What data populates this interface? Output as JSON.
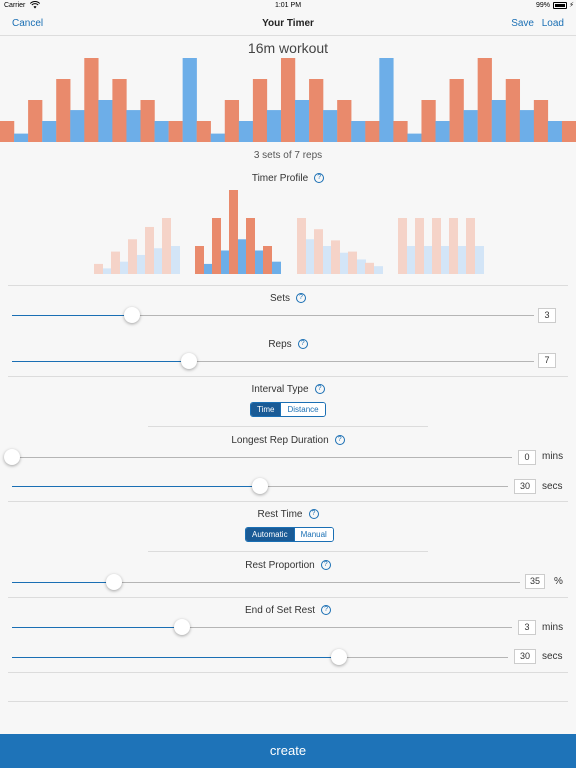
{
  "status": {
    "carrier": "Carrier",
    "time": "1:01 PM",
    "battery": "99%",
    "battery_level": 0.99
  },
  "nav": {
    "cancel": "Cancel",
    "title": "Your Timer",
    "save": "Save",
    "load": "Load"
  },
  "workout": {
    "title": "16m workout",
    "summary": "3 sets of 7 reps",
    "colors": {
      "work": "#e98a6c",
      "rest": "#6daee8"
    },
    "bars": [
      {
        "type": "work",
        "v": 0.25
      },
      {
        "type": "rest",
        "v": 0.1
      },
      {
        "type": "work",
        "v": 0.5
      },
      {
        "type": "rest",
        "v": 0.25
      },
      {
        "type": "work",
        "v": 0.75
      },
      {
        "type": "rest",
        "v": 0.38
      },
      {
        "type": "work",
        "v": 1.0
      },
      {
        "type": "rest",
        "v": 0.5
      },
      {
        "type": "work",
        "v": 0.75
      },
      {
        "type": "rest",
        "v": 0.38
      },
      {
        "type": "work",
        "v": 0.5
      },
      {
        "type": "rest",
        "v": 0.25
      },
      {
        "type": "work",
        "v": 0.25
      },
      {
        "type": "rest",
        "v": 1.0
      },
      {
        "type": "work",
        "v": 0.25
      },
      {
        "type": "rest",
        "v": 0.1
      },
      {
        "type": "work",
        "v": 0.5
      },
      {
        "type": "rest",
        "v": 0.25
      },
      {
        "type": "work",
        "v": 0.75
      },
      {
        "type": "rest",
        "v": 0.38
      },
      {
        "type": "work",
        "v": 1.0
      },
      {
        "type": "rest",
        "v": 0.5
      },
      {
        "type": "work",
        "v": 0.75
      },
      {
        "type": "rest",
        "v": 0.38
      },
      {
        "type": "work",
        "v": 0.5
      },
      {
        "type": "rest",
        "v": 0.25
      },
      {
        "type": "work",
        "v": 0.25
      },
      {
        "type": "rest",
        "v": 1.0
      },
      {
        "type": "work",
        "v": 0.25
      },
      {
        "type": "rest",
        "v": 0.1
      },
      {
        "type": "work",
        "v": 0.5
      },
      {
        "type": "rest",
        "v": 0.25
      },
      {
        "type": "work",
        "v": 0.75
      },
      {
        "type": "rest",
        "v": 0.38
      },
      {
        "type": "work",
        "v": 1.0
      },
      {
        "type": "rest",
        "v": 0.5
      },
      {
        "type": "work",
        "v": 0.75
      },
      {
        "type": "rest",
        "v": 0.38
      },
      {
        "type": "work",
        "v": 0.5
      },
      {
        "type": "rest",
        "v": 0.25
      },
      {
        "type": "work",
        "v": 0.25
      }
    ]
  },
  "timer_profile": {
    "label": "Timer Profile",
    "selected": 1,
    "options": [
      {
        "name": "ascending",
        "work": [
          0.18,
          0.4,
          0.62,
          0.84,
          1.0
        ],
        "rest": [
          0.1,
          0.22,
          0.34,
          0.46,
          0.5
        ]
      },
      {
        "name": "pyramid",
        "work": [
          0.5,
          1.0,
          1.5,
          1.0,
          0.5
        ],
        "rest": [
          0.18,
          0.42,
          0.62,
          0.42,
          0.22
        ]
      },
      {
        "name": "descending",
        "work": [
          1.0,
          0.8,
          0.6,
          0.4,
          0.2
        ],
        "rest": [
          0.62,
          0.5,
          0.38,
          0.26,
          0.14
        ]
      },
      {
        "name": "constant",
        "work": [
          1.0,
          1.0,
          1.0,
          1.0,
          1.0
        ],
        "rest": [
          0.5,
          0.5,
          0.5,
          0.5,
          0.5
        ]
      }
    ]
  },
  "sets": {
    "label": "Sets",
    "value": "3",
    "fraction": 0.23
  },
  "reps": {
    "label": "Reps",
    "value": "7",
    "fraction": 0.34
  },
  "interval_type": {
    "label": "Interval Type",
    "options": [
      "Time",
      "Distance"
    ],
    "selected": "Time"
  },
  "longest_rep": {
    "label": "Longest Rep Duration",
    "mins": {
      "value": "0",
      "unit": "mins",
      "fraction": 0.0
    },
    "secs": {
      "value": "30",
      "unit": "secs",
      "fraction": 0.5
    }
  },
  "rest_time": {
    "label": "Rest Time",
    "options": [
      "Automatic",
      "Manual"
    ],
    "selected": "Automatic"
  },
  "rest_proportion": {
    "label": "Rest Proportion",
    "value": "35",
    "unit": "%",
    "fraction": 0.2
  },
  "end_of_set_rest": {
    "label": "End of Set Rest",
    "mins": {
      "value": "3",
      "unit": "mins",
      "fraction": 0.34
    },
    "secs": {
      "value": "30",
      "unit": "secs",
      "fraction": 0.66
    }
  },
  "create": {
    "label": "create"
  }
}
